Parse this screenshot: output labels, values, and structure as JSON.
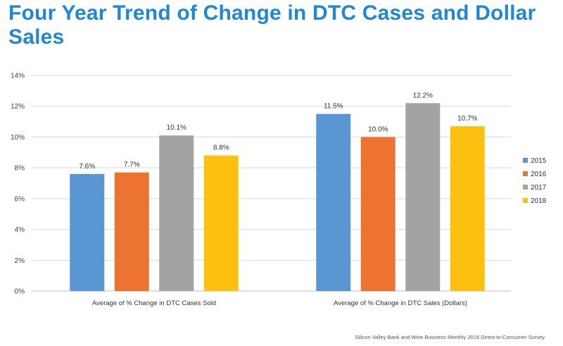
{
  "title": "Four Year Trend of Change in DTC Cases and Dollar Sales",
  "source": "Silicon Valley Bank and Wine Business Monthly 2018 Direct-to-Consumer Survey",
  "chart_data": {
    "type": "bar",
    "title": "Four Year Trend of Change in DTC Cases and Dollar Sales",
    "xlabel": "",
    "ylabel": "",
    "categories": [
      "Average of % Change in DTC Cases Sold",
      "Average of % Change in DTC Sales (Dollars)"
    ],
    "series": [
      {
        "name": "2015",
        "color": "#5a96d3",
        "values": [
          7.6,
          11.5
        ],
        "labels": [
          "7.6%",
          "11.5%"
        ]
      },
      {
        "name": "2016",
        "color": "#ec7430",
        "values": [
          7.7,
          10.0
        ],
        "labels": [
          "7.7%",
          "10.0%"
        ]
      },
      {
        "name": "2017",
        "color": "#a3a3a3",
        "values": [
          10.1,
          12.2
        ],
        "labels": [
          "10.1%",
          "12.2%"
        ]
      },
      {
        "name": "2018",
        "color": "#fdc010",
        "values": [
          8.8,
          10.7
        ],
        "labels": [
          "8.8%",
          "10.7%"
        ]
      }
    ],
    "ylim": [
      0,
      14
    ],
    "yticks": [
      0,
      2,
      4,
      6,
      8,
      10,
      12,
      14
    ],
    "ytick_labels": [
      "0%",
      "2%",
      "4%",
      "6%",
      "8%",
      "10%",
      "12%",
      "14%"
    ],
    "grid": true,
    "legend_position": "right"
  }
}
